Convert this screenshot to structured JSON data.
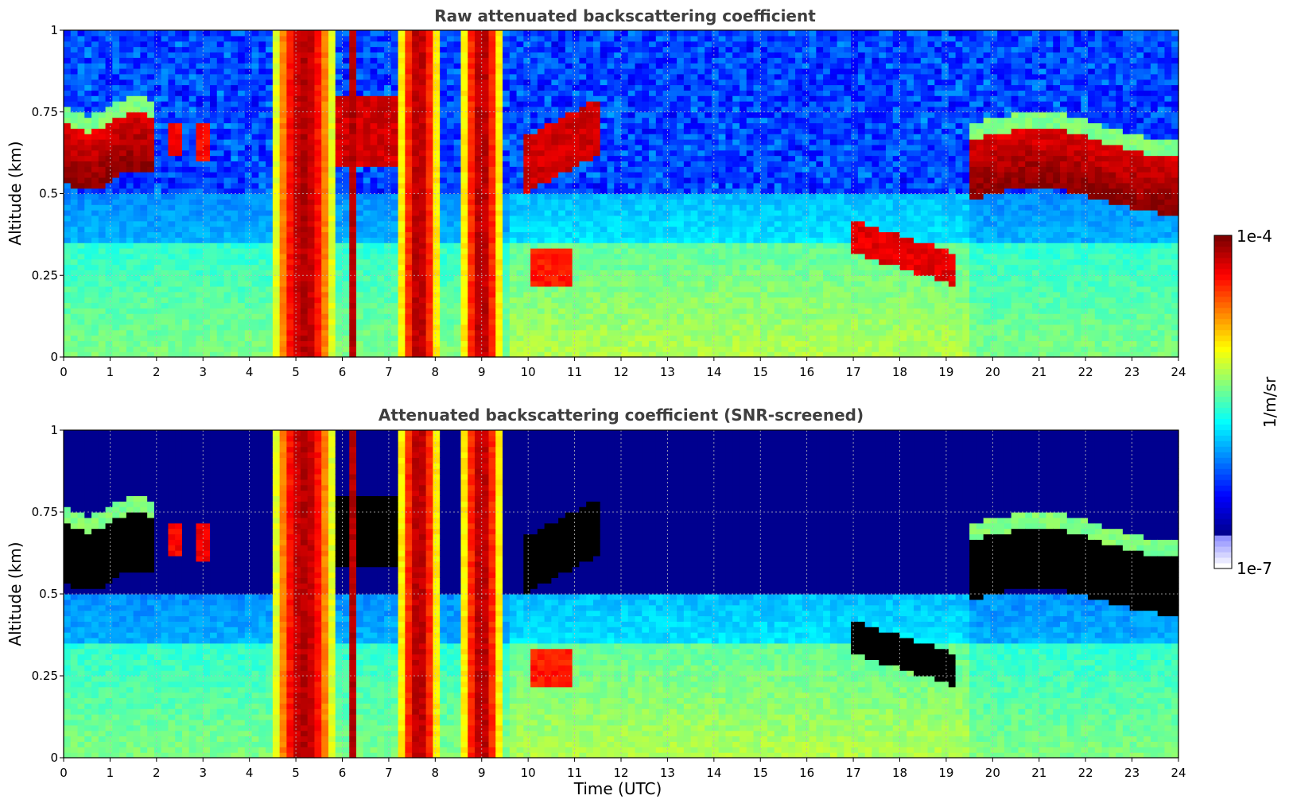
{
  "chart_data": [
    {
      "type": "heatmap",
      "title": "Raw attenuated backscattering coefficient",
      "xlabel": "",
      "ylabel": "Altitude (km)",
      "xlim": [
        0,
        24
      ],
      "ylim": [
        0,
        1
      ],
      "xticks": [
        "0",
        "1",
        "2",
        "3",
        "4",
        "5",
        "6",
        "7",
        "8",
        "9",
        "10",
        "11",
        "12",
        "13",
        "14",
        "15",
        "16",
        "17",
        "18",
        "19",
        "20",
        "21",
        "22",
        "23",
        "24"
      ],
      "yticks": [
        "0",
        "0.25",
        "0.5",
        "0.75",
        "1"
      ],
      "grid": true,
      "screened": false,
      "features": [
        {
          "x": [
            0,
            1.85
          ],
          "y": [
            0.55,
            0.72
          ],
          "level": "high"
        },
        {
          "x": [
            2.2,
            3.1
          ],
          "y": [
            0.6,
            0.72
          ],
          "level": "high"
        },
        {
          "x": [
            6.0,
            7.2
          ],
          "y": [
            0.62,
            0.78
          ],
          "level": "high"
        },
        {
          "x": [
            9.9,
            11.5
          ],
          "y": [
            0.55,
            0.75
          ],
          "level": "high"
        },
        {
          "x": [
            10.0,
            11.0
          ],
          "y": [
            0.22,
            0.35
          ],
          "level": "high"
        },
        {
          "x": [
            17.0,
            19.2
          ],
          "y": [
            0.22,
            0.45
          ],
          "level": "high"
        },
        {
          "x": [
            19.5,
            24
          ],
          "y": [
            0.5,
            0.7
          ],
          "level": "high"
        },
        {
          "x": [
            4.6,
            5.8
          ],
          "y": [
            0,
            1
          ],
          "level": "precip"
        },
        {
          "x": [
            8.6,
            9.4
          ],
          "y": [
            0,
            1
          ],
          "level": "precip"
        },
        {
          "x": [
            7.2,
            8.1
          ],
          "y": [
            0,
            1
          ],
          "level": "precip"
        }
      ]
    },
    {
      "type": "heatmap",
      "title": "Attenuated backscattering coefficient (SNR-screened)",
      "xlabel": "Time (UTC)",
      "ylabel": "Altitude (km)",
      "xlim": [
        0,
        24
      ],
      "ylim": [
        0,
        1
      ],
      "xticks": [
        "0",
        "1",
        "2",
        "3",
        "4",
        "5",
        "6",
        "7",
        "8",
        "9",
        "10",
        "11",
        "12",
        "13",
        "14",
        "15",
        "16",
        "17",
        "18",
        "19",
        "20",
        "21",
        "22",
        "23",
        "24"
      ],
      "yticks": [
        "0",
        "0.25",
        "0.5",
        "0.75",
        "1"
      ],
      "grid": true,
      "screened": true
    }
  ],
  "colorbar": {
    "label": "1/m/sr",
    "max_label": "1e-4",
    "min_label": "1e-7",
    "colors": [
      "#00008f",
      "#0000ff",
      "#0080ff",
      "#00ffff",
      "#80ff80",
      "#ffff00",
      "#ff8000",
      "#ff0000",
      "#800000"
    ]
  }
}
